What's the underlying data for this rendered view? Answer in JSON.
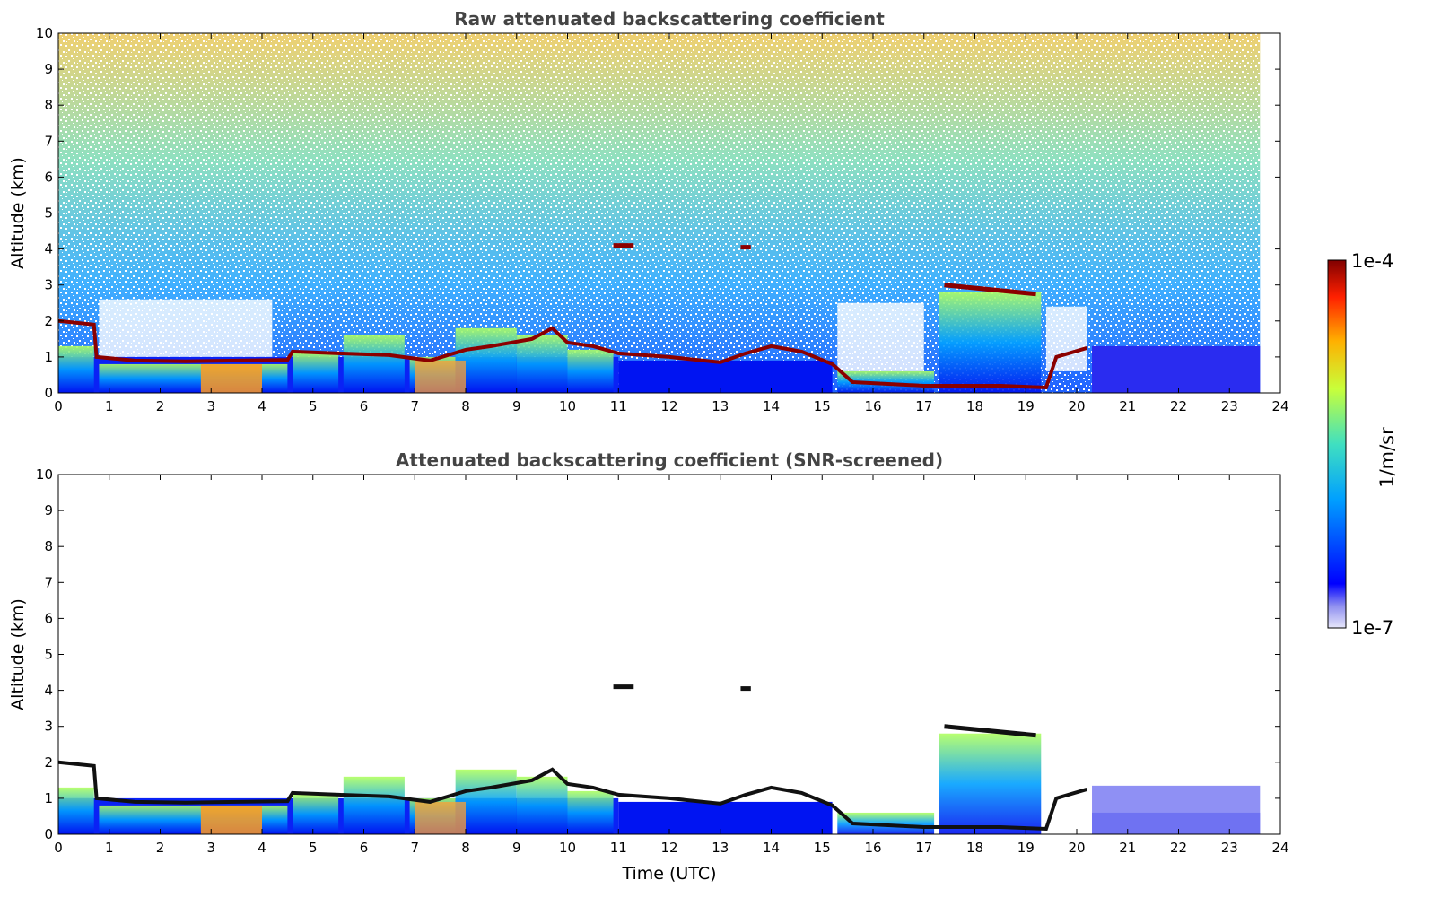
{
  "chart_data": [
    {
      "type": "heatmap",
      "title": "Raw attenuated backscattering coefficient",
      "xlabel": "",
      "ylabel": "Altitude (km)",
      "xlim": [
        0,
        24
      ],
      "ylim": [
        0,
        10
      ],
      "xticks": [
        "0",
        "1",
        "2",
        "3",
        "4",
        "5",
        "6",
        "7",
        "8",
        "9",
        "10",
        "11",
        "12",
        "13",
        "14",
        "15",
        "16",
        "17",
        "18",
        "19",
        "20",
        "21",
        "22",
        "23",
        "24"
      ],
      "yticks": [
        "0",
        "1",
        "2",
        "3",
        "4",
        "5",
        "6",
        "7",
        "8",
        "9",
        "10"
      ],
      "screened": false
    },
    {
      "type": "heatmap",
      "title": "Attenuated backscattering coefficient (SNR-screened)",
      "xlabel": "Time (UTC)",
      "ylabel": "Altitude (km)",
      "xlim": [
        0,
        24
      ],
      "ylim": [
        0,
        10
      ],
      "xticks": [
        "0",
        "1",
        "2",
        "3",
        "4",
        "5",
        "6",
        "7",
        "8",
        "9",
        "10",
        "11",
        "12",
        "13",
        "14",
        "15",
        "16",
        "17",
        "18",
        "19",
        "20",
        "21",
        "22",
        "23",
        "24"
      ],
      "yticks": [
        "0",
        "1",
        "2",
        "3",
        "4",
        "5",
        "6",
        "7",
        "8",
        "9",
        "10"
      ],
      "screened": true
    }
  ],
  "colorbar": {
    "max_label": "1e-4",
    "min_label": "1e-7",
    "unit": "1/m/sr",
    "colormap": "jet"
  },
  "colors": {
    "title": "#444444",
    "cloud_base": "#8b0000"
  }
}
